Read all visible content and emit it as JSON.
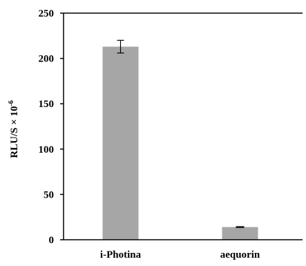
{
  "chart_data": {
    "type": "bar",
    "title": "",
    "xlabel": "",
    "ylabel": "RLU/S × 10",
    "ylabel_superscript": "-6",
    "categories": [
      "i-Photina",
      "aequorin"
    ],
    "values": [
      213,
      14
    ],
    "error": [
      7,
      0.5
    ],
    "ylim": [
      0,
      250
    ],
    "yticks": [
      0,
      50,
      100,
      150,
      200,
      250
    ],
    "ytick_labels": [
      "0",
      "50",
      "100",
      "150",
      "200",
      "250"
    ],
    "grid": false,
    "legend": "none",
    "bar_color": "#a6a6a6",
    "axis_color": "#000000",
    "error_bar_color": "#000000"
  }
}
